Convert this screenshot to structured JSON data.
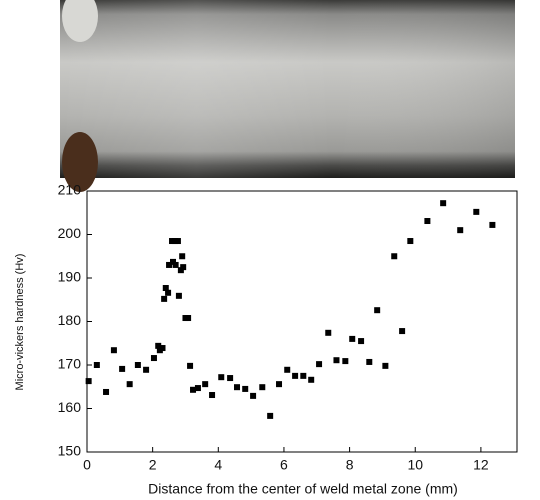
{
  "chart_data": {
    "type": "scatter",
    "xlabel": "Distance from the center of weld metal zone (mm)",
    "ylabel": "Micro-vickers hardness (Hv)",
    "x": [
      0.05,
      0.3,
      0.58,
      0.82,
      1.07,
      1.3,
      1.55,
      1.8,
      2.04,
      2.17,
      2.22,
      2.3,
      2.35,
      2.4,
      2.47,
      2.5,
      2.59,
      2.62,
      2.68,
      2.7,
      2.77,
      2.8,
      2.86,
      2.9,
      2.93,
      3.0,
      3.08,
      3.14,
      3.23,
      3.38,
      3.6,
      3.81,
      4.09,
      4.36,
      4.57,
      4.82,
      5.06,
      5.34,
      5.58,
      5.85,
      6.1,
      6.34,
      6.59,
      6.83,
      7.07,
      7.35,
      7.6,
      7.87,
      8.08,
      8.35,
      8.6,
      8.84,
      9.09,
      9.36,
      9.6,
      9.85,
      10.37,
      10.85,
      11.37,
      11.86,
      12.35
    ],
    "values": [
      166.3,
      170,
      163.8,
      173.4,
      169.1,
      165.6,
      170,
      168.9,
      171.6,
      174.4,
      173.4,
      173.9,
      185.2,
      187.7,
      186.6,
      193,
      198.5,
      193.7,
      198.5,
      193,
      198.5,
      185.9,
      191.8,
      195,
      192.5,
      180.8,
      180.8,
      169.8,
      164.3,
      164.7,
      165.6,
      163.1,
      167.2,
      167,
      164.9,
      164.5,
      162.9,
      164.9,
      158.3,
      165.6,
      168.9,
      167.5,
      167.5,
      166.6,
      170.2,
      177.4,
      171.1,
      170.9,
      176,
      175.5,
      170.7,
      182.6,
      169.8,
      195,
      177.8,
      198.5,
      203.1,
      207.2,
      201,
      205.2,
      202.2
    ],
    "color": "#000000",
    "xlim": [
      0,
      13.1
    ],
    "xticks": [
      0,
      2,
      4,
      6,
      8,
      10,
      12
    ],
    "ylim": [
      150,
      210
    ],
    "yticks": [
      150,
      160,
      170,
      180,
      190,
      200,
      210
    ]
  }
}
